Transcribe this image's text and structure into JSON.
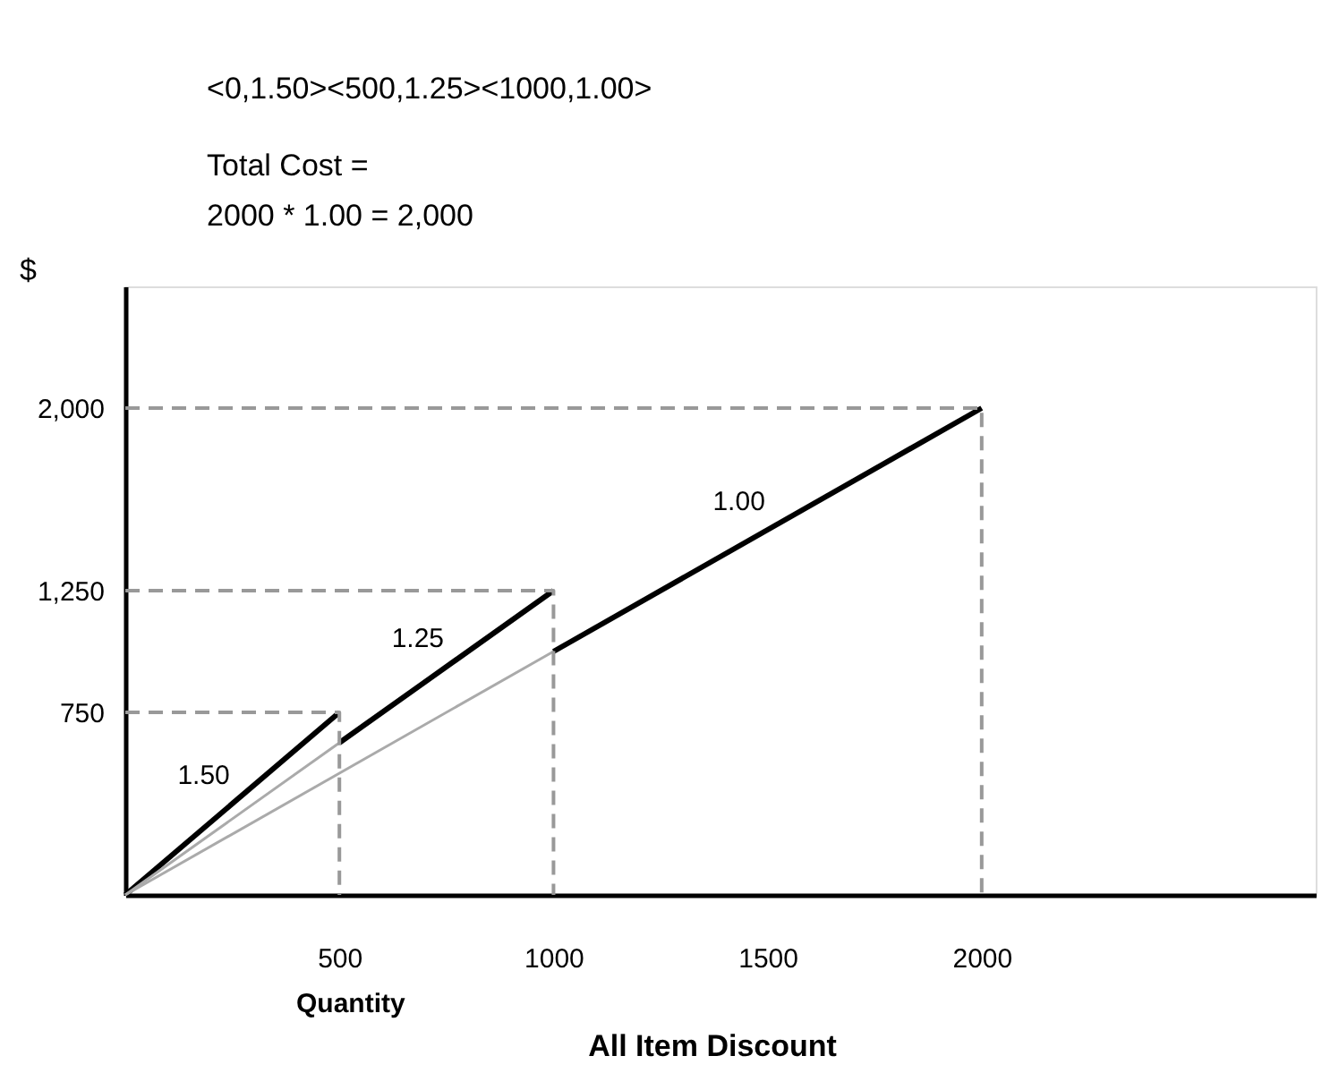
{
  "chart_data": {
    "type": "line",
    "title": "<0,1.50><500,1.25><1000,1.00>",
    "subtitle": [
      "Total Cost =",
      "2000 * 1.00 = 2,000"
    ],
    "xlabel": "Quantity",
    "ylabel": "$",
    "xlim": [
      0,
      2780
    ],
    "ylim": [
      0,
      2500
    ],
    "xticks": [
      500,
      1000,
      1500,
      2000
    ],
    "yticks": [
      750,
      {
        "value": 1250,
        "label": "1,250"
      },
      {
        "value": 2000,
        "label": "2,000"
      }
    ],
    "grid": false,
    "marker": "none",
    "series": [
      {
        "x": [
          0,
          500
        ],
        "values": [
          0,
          750
        ],
        "color": "#000000",
        "line_style": "solid"
      },
      {
        "x": [
          500,
          1000
        ],
        "values": [
          625,
          1250
        ],
        "color": "#000000",
        "line_style": "solid"
      },
      {
        "x": [
          1000,
          2000
        ],
        "values": [
          1000,
          2000
        ],
        "color": "#000000",
        "line_style": "solid"
      },
      {
        "x": [
          0,
          500
        ],
        "values": [
          0,
          625
        ],
        "color": "#aaaaaa",
        "line_style": "solid"
      },
      {
        "x": [
          0,
          1000
        ],
        "values": [
          0,
          1000
        ],
        "color": "#aaaaaa",
        "line_style": "solid"
      },
      {
        "x": [
          0,
          500,
          500
        ],
        "values": [
          750,
          750,
          0
        ],
        "color": "#999999",
        "line_style": "dashed"
      },
      {
        "x": [
          0,
          1000,
          1000
        ],
        "values": [
          1250,
          1250,
          0
        ],
        "color": "#999999",
        "line_style": "dashed"
      },
      {
        "x": [
          0,
          2000,
          2000
        ],
        "values": [
          2000,
          2000,
          0
        ],
        "color": "#999999",
        "line_style": "dashed"
      }
    ],
    "annotations": [
      {
        "text": "1.50",
        "x": 250,
        "y": 375
      },
      {
        "text": "1.25",
        "x": 750,
        "y": 937.5
      },
      {
        "text": "1.00",
        "x": 1500,
        "y": 1500
      },
      "All Item Discount"
    ]
  }
}
